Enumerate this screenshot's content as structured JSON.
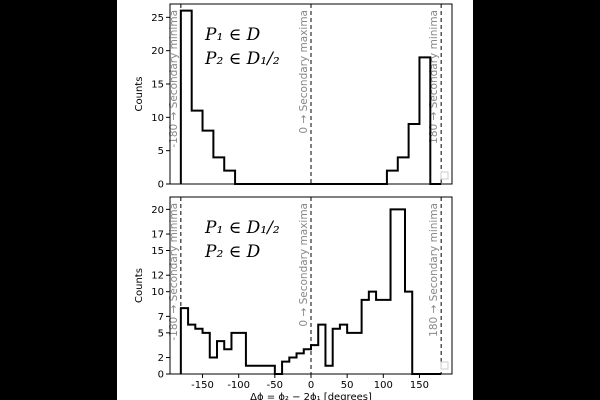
{
  "chart_data": [
    {
      "type": "histogram",
      "annotation_line1": "P₁ ∈ D",
      "annotation_line2": "P₂ ∈ D₁/₂",
      "ylabel": "Counts",
      "xlabel": "",
      "xlim": [
        -195,
        195
      ],
      "ylim": [
        0,
        27
      ],
      "yticks": [
        0,
        5,
        10,
        15,
        20,
        25
      ],
      "xticks": [],
      "bin_edges": [
        -180,
        -165,
        -150,
        -135,
        -120,
        -105,
        -90,
        -75,
        -60,
        -45,
        -30,
        -15,
        0,
        15,
        30,
        45,
        60,
        75,
        90,
        105,
        120,
        135,
        150,
        165,
        180
      ],
      "counts": [
        26,
        11,
        8,
        4,
        2,
        0,
        0,
        0,
        0,
        0,
        0,
        0,
        0,
        0,
        0,
        0,
        0,
        0,
        0,
        2,
        4,
        9,
        19,
        0
      ],
      "vlines": [
        {
          "x": -180,
          "label": "-180 → Secondary minima"
        },
        {
          "x": 0,
          "label": "0 → Secondary maxima"
        },
        {
          "x": 180,
          "label": "180 → Secondary minima"
        }
      ]
    },
    {
      "type": "histogram",
      "annotation_line1": "P₁ ∈ D₁/₂",
      "annotation_line2": "P₂ ∈ D",
      "ylabel": "Counts",
      "xlabel": "Δϕ = ϕ₂ − 2ϕ₁ [degrees]",
      "xlim": [
        -195,
        195
      ],
      "ylim": [
        0,
        21.5
      ],
      "yticks": [
        0,
        2,
        5,
        7,
        10,
        12,
        15,
        17,
        20
      ],
      "xticks": [
        -150,
        -100,
        -50,
        0,
        50,
        100,
        150
      ],
      "bin_edges": [
        -180,
        -170,
        -160,
        -150,
        -140,
        -130,
        -120,
        -110,
        -100,
        -90,
        -80,
        -70,
        -60,
        -50,
        -40,
        -30,
        -20,
        -10,
        0,
        10,
        20,
        30,
        40,
        50,
        60,
        70,
        80,
        90,
        100,
        110,
        120,
        130,
        140,
        150,
        160,
        170,
        180
      ],
      "counts": [
        8,
        6,
        5.5,
        5,
        2,
        4,
        3,
        5,
        5,
        1,
        1,
        1,
        1,
        0,
        1.5,
        2,
        2.5,
        3,
        3.5,
        6,
        1,
        5.5,
        6,
        5,
        5,
        9,
        10,
        9,
        9,
        20,
        20,
        10,
        0,
        0,
        0,
        0
      ],
      "vlines": [
        {
          "x": -180,
          "label": "-180 → Secondary minima"
        },
        {
          "x": 0,
          "label": "0 → Secondary maxima"
        },
        {
          "x": 180,
          "label": "180 → Secondary minima"
        }
      ]
    }
  ]
}
